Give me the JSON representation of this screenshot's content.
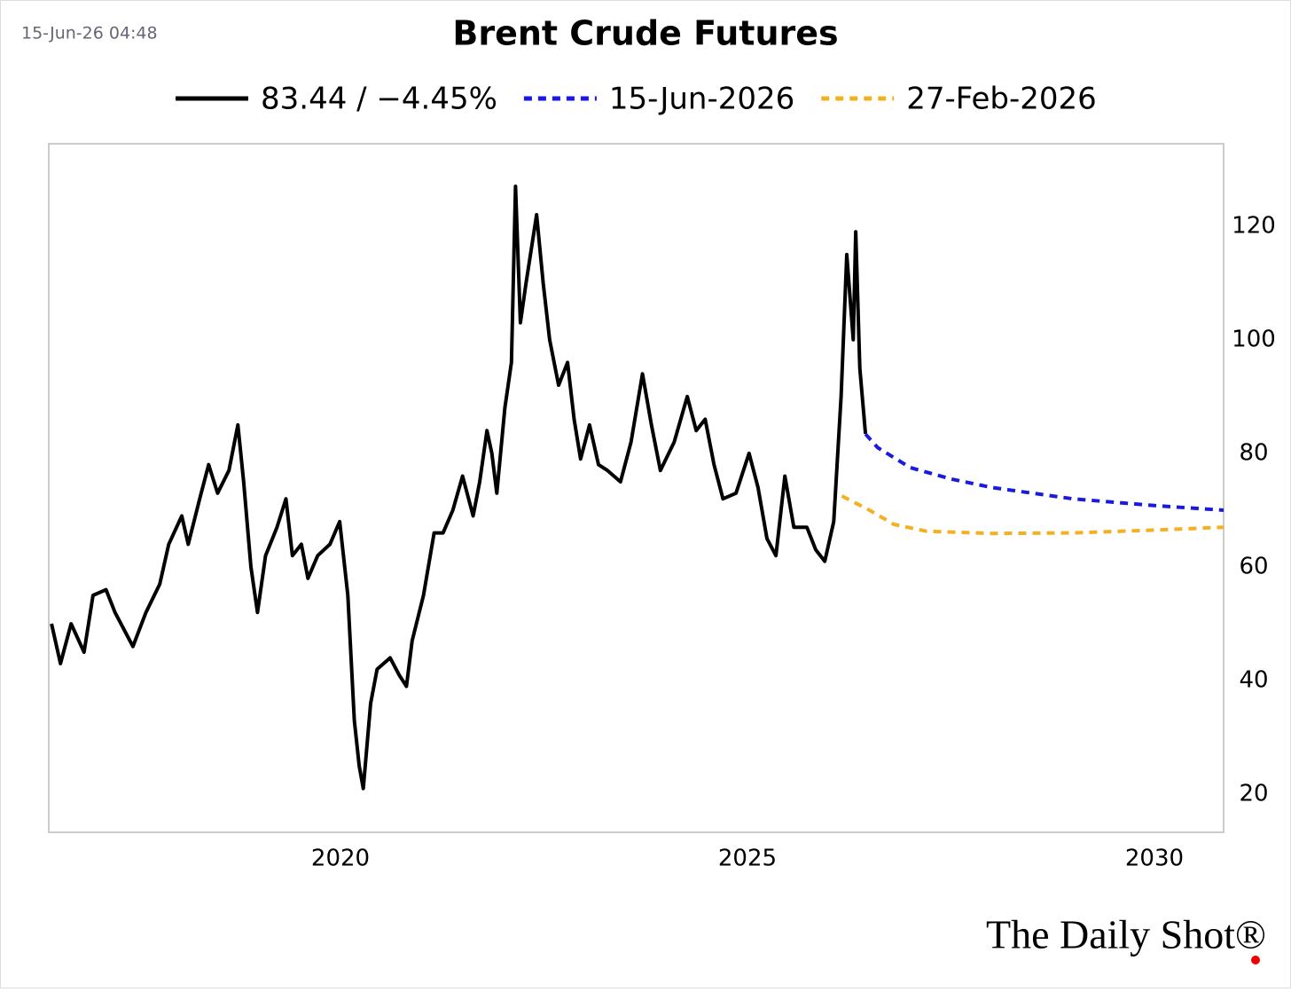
{
  "timestamp": "15-Jun-26 04:48",
  "watermark": "The Daily Shot®",
  "chart_data": {
    "type": "line",
    "title": "Brent Crude Futures",
    "xlim": [
      2016.416,
      2030.85
    ],
    "xticks": [
      2020,
      2025,
      2030
    ],
    "ylim": [
      13.3,
      134.5
    ],
    "yticks": [
      20,
      40,
      60,
      80,
      100,
      120
    ],
    "y_axis_side": "right",
    "series": [
      {
        "name": "83.44 / −4.45%",
        "color": "#000000",
        "style": "solid",
        "x": [
          2016.45,
          2016.56,
          2016.69,
          2016.85,
          2016.96,
          2017.12,
          2017.23,
          2017.45,
          2017.61,
          2017.78,
          2017.89,
          2018.05,
          2018.13,
          2018.27,
          2018.38,
          2018.49,
          2018.63,
          2018.74,
          2018.81,
          2018.9,
          2018.98,
          2019.08,
          2019.22,
          2019.33,
          2019.41,
          2019.52,
          2019.6,
          2019.72,
          2019.87,
          2019.99,
          2020.09,
          2020.17,
          2020.23,
          2020.28,
          2020.37,
          2020.45,
          2020.61,
          2020.72,
          2020.81,
          2020.88,
          2021.02,
          2021.15,
          2021.26,
          2021.38,
          2021.5,
          2021.63,
          2021.71,
          2021.8,
          2021.86,
          2021.92,
          2022.02,
          2022.1,
          2022.15,
          2022.21,
          2022.28,
          2022.41,
          2022.49,
          2022.57,
          2022.68,
          2022.79,
          2022.87,
          2022.95,
          2023.06,
          2023.17,
          2023.28,
          2023.44,
          2023.57,
          2023.71,
          2023.82,
          2023.93,
          2024.1,
          2024.26,
          2024.37,
          2024.48,
          2024.59,
          2024.7,
          2024.86,
          2025.02,
          2025.13,
          2025.24,
          2025.35,
          2025.46,
          2025.57,
          2025.73,
          2025.84,
          2025.95,
          2026.06,
          2026.15,
          2026.22,
          2026.3,
          2026.33,
          2026.38,
          2026.45
        ],
        "values": [
          50,
          43,
          50,
          45,
          55,
          56,
          52,
          46,
          52,
          57,
          64,
          69,
          64,
          72,
          78,
          73,
          77,
          85,
          75,
          60,
          52,
          62,
          67,
          72,
          62,
          64,
          58,
          62,
          64,
          68,
          55,
          33,
          25,
          21,
          36,
          42,
          44,
          41,
          39,
          47,
          55,
          66,
          66,
          70,
          76,
          69,
          75,
          84,
          80,
          73,
          88,
          96,
          127,
          103,
          110,
          122,
          110,
          100,
          92,
          96,
          86,
          79,
          85,
          78,
          77,
          75,
          82,
          94,
          85,
          77,
          82,
          90,
          84,
          86,
          78,
          72,
          73,
          80,
          74,
          65,
          62,
          76,
          67,
          67,
          63,
          61,
          68,
          90,
          115,
          100,
          119,
          95,
          83.44
        ]
      },
      {
        "name": "15-Jun-2026",
        "color": "#1a1adf",
        "style": "dotted",
        "x": [
          2026.45,
          2026.6,
          2027.0,
          2027.5,
          2028.0,
          2029.0,
          2030.0,
          2030.85
        ],
        "values": [
          83.4,
          81,
          77.5,
          75.5,
          74,
          72,
          70.8,
          70
        ]
      },
      {
        "name": "27-Feb-2026",
        "color": "#f5b021",
        "style": "dotted",
        "x": [
          2026.16,
          2026.5,
          2026.8,
          2027.2,
          2028.0,
          2029.0,
          2030.0,
          2030.85
        ],
        "values": [
          72.5,
          70,
          67.5,
          66.3,
          65.9,
          66,
          66.5,
          67
        ]
      }
    ]
  }
}
